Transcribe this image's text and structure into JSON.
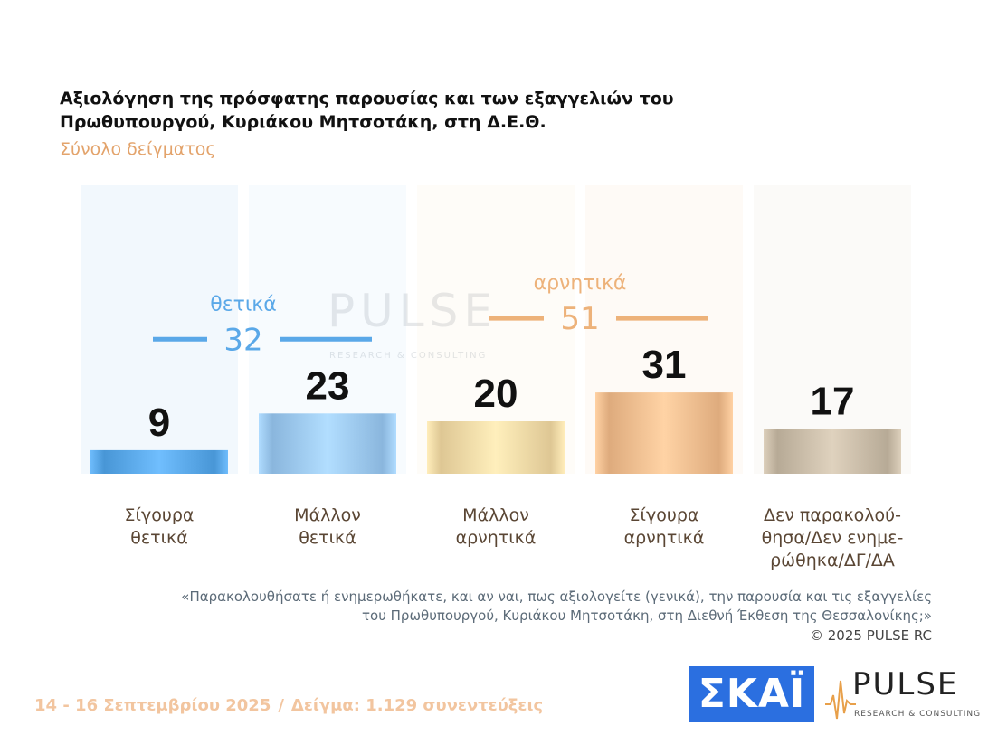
{
  "chart_data": {
    "type": "bar",
    "title": "Αξιολόγηση της πρόσφατης παρουσίας και των εξαγγελιών του Πρωθυπουργού, Κυριάκου Μητσοτάκη, στη Δ.Ε.Θ.",
    "subtitle": "Σύνολο δείγματος",
    "categories": [
      [
        "Σίγουρα",
        "θετικά"
      ],
      [
        "Μάλλον",
        "θετικά"
      ],
      [
        "Μάλλον",
        "αρνητικά"
      ],
      [
        "Σίγουρα",
        "αρνητικά"
      ],
      [
        "Δεν παρακολού-",
        "θησα/Δεν ενημε-",
        "ρώθηκα/ΔΓ/ΔΑ"
      ]
    ],
    "values": [
      9,
      23,
      20,
      31,
      17
    ],
    "value_labels": [
      "9",
      "23",
      "20",
      "31",
      "17"
    ],
    "colors": [
      "#5aa8e8",
      "#9cc8ef",
      "#f0d9a6",
      "#f0bd8f",
      "#c9bca8"
    ],
    "groups": [
      {
        "label": "θετικά",
        "total": "32",
        "color": "#5aa8e8",
        "from": 0,
        "to": 1
      },
      {
        "label": "αρνητικά",
        "total": "51",
        "color": "#edb27a",
        "from": 2,
        "to": 3
      }
    ],
    "ylim": [
      0,
      100
    ],
    "grid": false,
    "legend": "none"
  },
  "question": [
    "«Παρακολουθήσατε ή ενημερωθήκατε, και αν ναι, πως αξιολογείτε (γενικά), την παρουσία και τις εξαγγελίες",
    "του Πρωθυπουργού, Κυριάκου Μητσοτάκη, στη Διεθνή Έκθεση της Θεσσαλονίκης;»"
  ],
  "copyright": "©  2025  PULSE RC",
  "footer": {
    "dates": "14 - 16 Σεπτεμβρίου 2025",
    "separator": "/",
    "sample": "Δείγμα:  1.129 συνεντεύξεις"
  },
  "logos": {
    "skai": "ΣΚΑΪ",
    "pulse": "PULSE",
    "pulse_sub": "RESEARCH & CONSULTING"
  },
  "watermark": {
    "name": "PULSE",
    "sub": "RESEARCH & CONSULTING"
  }
}
